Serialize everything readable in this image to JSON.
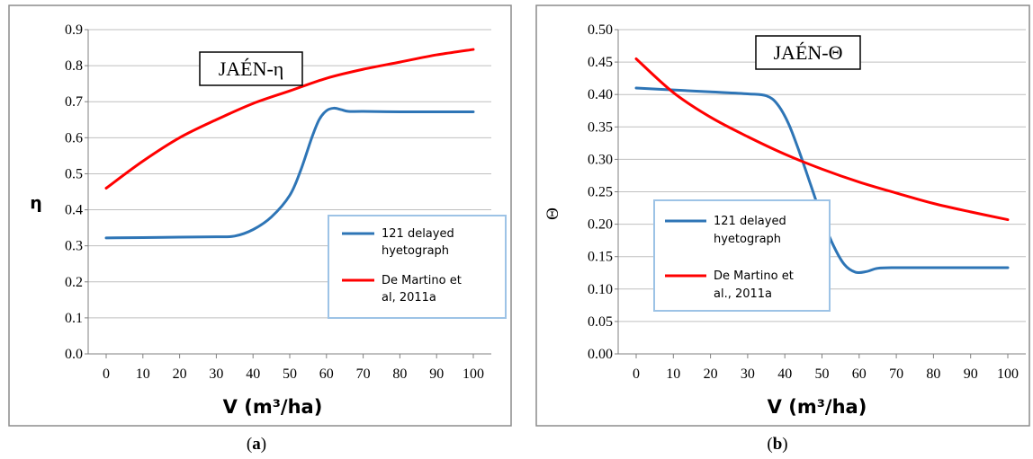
{
  "chart_data": [
    {
      "type": "line",
      "title": "JAÉN-η",
      "xlabel": "V (m³/ha)",
      "ylabel": "η",
      "xlim": [
        0,
        100
      ],
      "ylim": [
        0,
        0.9
      ],
      "xticks": [
        0,
        10,
        20,
        30,
        40,
        50,
        60,
        70,
        80,
        90,
        100
      ],
      "yticks": [
        "0.0",
        "0.1",
        "0.2",
        "0.3",
        "0.4",
        "0.5",
        "0.6",
        "0.7",
        "0.8",
        "0.9"
      ],
      "grid": true,
      "legend_position": "bottom-right",
      "caption": "a",
      "series": [
        {
          "name": "121 delayed hyetograph",
          "color": "#2e75b6",
          "x": [
            0,
            10,
            20,
            30,
            35,
            40,
            45,
            50,
            53,
            56,
            58,
            60,
            62,
            64,
            66,
            70,
            80,
            90,
            100
          ],
          "y": [
            0.322,
            0.323,
            0.324,
            0.325,
            0.327,
            0.345,
            0.38,
            0.44,
            0.51,
            0.6,
            0.65,
            0.675,
            0.682,
            0.678,
            0.673,
            0.673,
            0.672,
            0.672,
            0.672
          ]
        },
        {
          "name": "De Martino et al, 2011a",
          "color": "#ff0000",
          "x": [
            0,
            10,
            20,
            30,
            40,
            50,
            60,
            70,
            80,
            90,
            100
          ],
          "y": [
            0.46,
            0.535,
            0.6,
            0.65,
            0.695,
            0.73,
            0.765,
            0.79,
            0.81,
            0.83,
            0.845
          ]
        }
      ]
    },
    {
      "type": "line",
      "title": "JAÉN-Θ",
      "xlabel": "V (m³/ha)",
      "ylabel": "Θ",
      "xlim": [
        0,
        100
      ],
      "ylim": [
        0,
        0.5
      ],
      "xticks": [
        0,
        10,
        20,
        30,
        40,
        50,
        60,
        70,
        80,
        90,
        100
      ],
      "yticks": [
        "0.00",
        "0.05",
        "0.10",
        "0.15",
        "0.20",
        "0.25",
        "0.30",
        "0.35",
        "0.40",
        "0.45",
        "0.50"
      ],
      "grid": true,
      "legend_position": "bottom-left",
      "caption": "b",
      "series": [
        {
          "name": "121 delayed hyetograph",
          "color": "#2e75b6",
          "x": [
            0,
            10,
            20,
            30,
            35,
            38,
            41,
            44,
            47,
            50,
            53,
            56,
            59,
            62,
            65,
            70,
            80,
            90,
            100
          ],
          "y": [
            0.41,
            0.407,
            0.404,
            0.401,
            0.398,
            0.385,
            0.355,
            0.31,
            0.26,
            0.21,
            0.168,
            0.138,
            0.126,
            0.127,
            0.132,
            0.133,
            0.133,
            0.133,
            0.133
          ]
        },
        {
          "name": "De Martino et al., 2011a",
          "color": "#ff0000",
          "x": [
            0,
            10,
            20,
            30,
            40,
            50,
            60,
            70,
            80,
            90,
            100
          ],
          "y": [
            0.455,
            0.403,
            0.365,
            0.335,
            0.308,
            0.285,
            0.265,
            0.248,
            0.232,
            0.219,
            0.207
          ]
        }
      ]
    }
  ]
}
